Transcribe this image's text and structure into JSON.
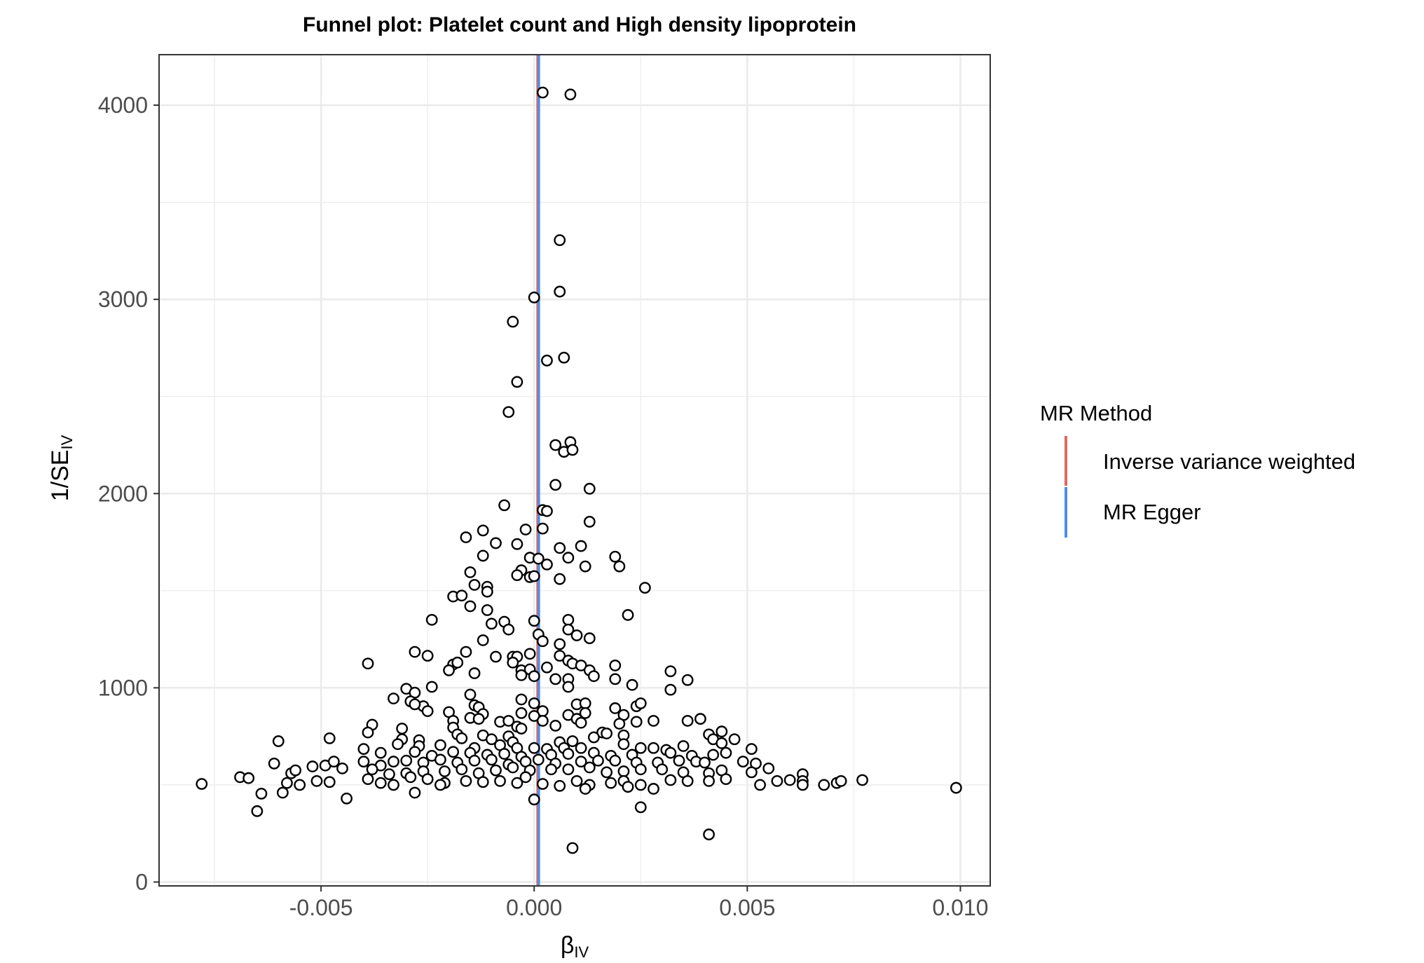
{
  "chart_data": {
    "type": "scatter",
    "title": "Funnel plot: Platelet count and High density lipoprotein",
    "xlabel": "βIV",
    "xlabel_main": "β",
    "xlabel_sub": "IV",
    "ylabel": "1/SEIV",
    "ylabel_main": "1/SE",
    "ylabel_sub": "IV",
    "xlim": [
      -0.0088,
      0.0107
    ],
    "ylim": [
      -20,
      4260
    ],
    "xticks": [
      -0.005,
      0.0,
      0.005,
      0.01
    ],
    "xtick_labels": [
      "-0.005",
      "0.000",
      "0.005",
      "0.010"
    ],
    "yticks": [
      0,
      1000,
      2000,
      3000,
      4000
    ],
    "ytick_labels": [
      "0",
      "1000",
      "2000",
      "3000",
      "4000"
    ],
    "grid": true,
    "legend": {
      "title": "MR Method",
      "position": "right",
      "entries": [
        {
          "label": "Inverse variance weighted",
          "color": "#E0685E"
        },
        {
          "label": "MR Egger",
          "color": "#4C8FEA"
        }
      ]
    },
    "lines": [
      {
        "name": "Inverse variance weighted",
        "x": 8e-05,
        "color": "#E0685E"
      },
      {
        "name": "MR Egger",
        "x": 0.00011,
        "color": "#4C8FEA"
      }
    ],
    "points": [
      [
        0.0002,
        4065
      ],
      [
        0.00085,
        4055
      ],
      [
        0.0006,
        3305
      ],
      [
        0.0006,
        3040
      ],
      [
        0.0,
        3010
      ],
      [
        -0.0005,
        2885
      ],
      [
        0.0007,
        2700
      ],
      [
        0.0003,
        2685
      ],
      [
        -0.0004,
        2575
      ],
      [
        -0.0006,
        2420
      ],
      [
        0.00085,
        2265
      ],
      [
        0.0005,
        2250
      ],
      [
        0.0007,
        2215
      ],
      [
        0.0009,
        2225
      ],
      [
        0.0005,
        2045
      ],
      [
        0.0013,
        2025
      ],
      [
        -0.0007,
        1940
      ],
      [
        0.0002,
        1915
      ],
      [
        0.0003,
        1910
      ],
      [
        0.0013,
        1855
      ],
      [
        -0.0002,
        1815
      ],
      [
        0.0002,
        1820
      ],
      [
        -0.0012,
        1810
      ],
      [
        -0.0016,
        1775
      ],
      [
        -0.0009,
        1745
      ],
      [
        -0.0004,
        1740
      ],
      [
        0.0006,
        1720
      ],
      [
        0.0011,
        1730
      ],
      [
        -0.0012,
        1680
      ],
      [
        -0.0001,
        1670
      ],
      [
        0.0001,
        1665
      ],
      [
        0.0008,
        1670
      ],
      [
        0.0019,
        1675
      ],
      [
        0.0003,
        1635
      ],
      [
        0.0012,
        1625
      ],
      [
        0.002,
        1625
      ],
      [
        -0.0003,
        1605
      ],
      [
        -0.0015,
        1595
      ],
      [
        -0.0004,
        1580
      ],
      [
        -0.0001,
        1570
      ],
      [
        0.0,
        1575
      ],
      [
        0.0006,
        1560
      ],
      [
        -0.0014,
        1530
      ],
      [
        -0.0011,
        1520
      ],
      [
        -0.0011,
        1495
      ],
      [
        0.0026,
        1515
      ],
      [
        -0.0019,
        1470
      ],
      [
        -0.0017,
        1475
      ],
      [
        -0.0015,
        1420
      ],
      [
        -0.0011,
        1400
      ],
      [
        0.0022,
        1375
      ],
      [
        -0.0024,
        1350
      ],
      [
        -0.0007,
        1340
      ],
      [
        0.0,
        1345
      ],
      [
        0.0008,
        1350
      ],
      [
        -0.001,
        1330
      ],
      [
        -0.0006,
        1300
      ],
      [
        0.0008,
        1300
      ],
      [
        0.0001,
        1275
      ],
      [
        0.001,
        1270
      ],
      [
        0.0013,
        1255
      ],
      [
        -0.0012,
        1245
      ],
      [
        0.0002,
        1240
      ],
      [
        0.0006,
        1225
      ],
      [
        -0.0028,
        1185
      ],
      [
        -0.0016,
        1185
      ],
      [
        -0.0025,
        1165
      ],
      [
        -0.0009,
        1160
      ],
      [
        -0.0005,
        1160
      ],
      [
        -0.0004,
        1160
      ],
      [
        -0.0001,
        1175
      ],
      [
        0.0006,
        1165
      ],
      [
        -0.0039,
        1125
      ],
      [
        -0.0019,
        1120
      ],
      [
        -0.0018,
        1130
      ],
      [
        -0.0005,
        1130
      ],
      [
        0.0003,
        1105
      ],
      [
        0.0008,
        1140
      ],
      [
        0.0009,
        1125
      ],
      [
        0.0011,
        1115
      ],
      [
        0.0019,
        1115
      ],
      [
        -0.002,
        1090
      ],
      [
        -0.0014,
        1075
      ],
      [
        -0.0003,
        1090
      ],
      [
        -0.0001,
        1095
      ],
      [
        0.0013,
        1090
      ],
      [
        0.0032,
        1085
      ],
      [
        -0.0003,
        1065
      ],
      [
        0.0,
        1060
      ],
      [
        0.0005,
        1045
      ],
      [
        0.0008,
        1045
      ],
      [
        0.0014,
        1060
      ],
      [
        0.0019,
        1045
      ],
      [
        0.0023,
        1015
      ],
      [
        0.0036,
        1040
      ],
      [
        0.0008,
        1005
      ],
      [
        0.0032,
        990
      ],
      [
        -0.003,
        995
      ],
      [
        -0.0024,
        1005
      ],
      [
        -0.0028,
        975
      ],
      [
        -0.0015,
        965
      ],
      [
        -0.0003,
        940
      ],
      [
        0.0,
        920
      ],
      [
        0.001,
        915
      ],
      [
        0.0012,
        920
      ],
      [
        0.0024,
        905
      ],
      [
        -0.0033,
        945
      ],
      [
        -0.0029,
        930
      ],
      [
        -0.0026,
        905
      ],
      [
        -0.0014,
        910
      ],
      [
        -0.0013,
        900
      ],
      [
        -0.0028,
        915
      ],
      [
        0.0002,
        880
      ],
      [
        0.0012,
        870
      ],
      [
        0.0019,
        895
      ],
      [
        0.0025,
        920
      ],
      [
        -0.0025,
        880
      ],
      [
        -0.002,
        875
      ],
      [
        -0.0012,
        865
      ],
      [
        -0.0003,
        870
      ],
      [
        0.0,
        855
      ],
      [
        0.0008,
        860
      ],
      [
        0.001,
        840
      ],
      [
        0.0021,
        860
      ],
      [
        0.0036,
        830
      ],
      [
        0.0039,
        840
      ],
      [
        -0.0015,
        845
      ],
      [
        -0.0013,
        840
      ],
      [
        -0.0019,
        830
      ],
      [
        -0.0008,
        825
      ],
      [
        -0.0006,
        830
      ],
      [
        0.0002,
        830
      ],
      [
        0.0005,
        805
      ],
      [
        0.0011,
        820
      ],
      [
        0.002,
        815
      ],
      [
        0.0024,
        825
      ],
      [
        0.0028,
        830
      ],
      [
        -0.0038,
        810
      ],
      [
        -0.0031,
        790
      ],
      [
        -0.0019,
        795
      ],
      [
        -0.0004,
        800
      ],
      [
        -0.0003,
        790
      ],
      [
        0.0016,
        770
      ],
      [
        0.0017,
        765
      ],
      [
        0.0041,
        760
      ],
      [
        -0.0039,
        770
      ],
      [
        -0.0018,
        760
      ],
      [
        -0.0012,
        755
      ],
      [
        -0.0006,
        750
      ],
      [
        0.0014,
        745
      ],
      [
        0.0021,
        755
      ],
      [
        0.0044,
        775
      ],
      [
        0.0047,
        735
      ],
      [
        -0.0031,
        735
      ],
      [
        -0.0027,
        730
      ],
      [
        -0.0017,
        740
      ],
      [
        -0.001,
        735
      ],
      [
        -0.0005,
        720
      ],
      [
        0.0006,
        720
      ],
      [
        0.0009,
        725
      ],
      [
        0.0042,
        735
      ],
      [
        -0.006,
        725
      ],
      [
        -0.0048,
        740
      ],
      [
        -0.004,
        685
      ],
      [
        -0.0032,
        710
      ],
      [
        -0.0027,
        700
      ],
      [
        -0.0022,
        705
      ],
      [
        -0.0014,
        690
      ],
      [
        -0.0008,
        705
      ],
      [
        -0.0004,
        690
      ],
      [
        0.0,
        690
      ],
      [
        0.0003,
        685
      ],
      [
        0.0007,
        690
      ],
      [
        0.0011,
        690
      ],
      [
        0.0021,
        710
      ],
      [
        0.0025,
        690
      ],
      [
        0.0028,
        690
      ],
      [
        0.0031,
        680
      ],
      [
        0.0035,
        700
      ],
      [
        0.0044,
        715
      ],
      [
        0.0051,
        685
      ],
      [
        -0.0036,
        665
      ],
      [
        -0.0028,
        670
      ],
      [
        -0.0024,
        650
      ],
      [
        -0.0019,
        670
      ],
      [
        -0.0015,
        665
      ],
      [
        -0.0011,
        655
      ],
      [
        -0.0007,
        660
      ],
      [
        -0.0003,
        645
      ],
      [
        0.0004,
        655
      ],
      [
        0.0008,
        660
      ],
      [
        0.0014,
        665
      ],
      [
        0.0018,
        650
      ],
      [
        0.0023,
        655
      ],
      [
        0.0032,
        665
      ],
      [
        0.0037,
        650
      ],
      [
        0.0042,
        655
      ],
      [
        0.0045,
        665
      ],
      [
        -0.0057,
        560
      ],
      [
        -0.0052,
        595
      ],
      [
        -0.0049,
        600
      ],
      [
        -0.0047,
        620
      ],
      [
        -0.004,
        620
      ],
      [
        -0.0036,
        600
      ],
      [
        -0.0033,
        620
      ],
      [
        -0.003,
        625
      ],
      [
        -0.0026,
        615
      ],
      [
        -0.0022,
        630
      ],
      [
        -0.0018,
        615
      ],
      [
        -0.0014,
        625
      ],
      [
        -0.001,
        630
      ],
      [
        -0.0006,
        605
      ],
      [
        -0.0002,
        620
      ],
      [
        0.0001,
        630
      ],
      [
        0.0005,
        610
      ],
      [
        0.0011,
        620
      ],
      [
        0.0015,
        625
      ],
      [
        0.0019,
        625
      ],
      [
        0.0024,
        615
      ],
      [
        0.0029,
        615
      ],
      [
        0.0034,
        625
      ],
      [
        0.0038,
        620
      ],
      [
        0.004,
        615
      ],
      [
        0.0049,
        620
      ],
      [
        0.0052,
        610
      ],
      [
        -0.0061,
        610
      ],
      [
        -0.0056,
        575
      ],
      [
        -0.0045,
        585
      ],
      [
        -0.0038,
        580
      ],
      [
        -0.0034,
        555
      ],
      [
        -0.003,
        560
      ],
      [
        -0.0026,
        570
      ],
      [
        -0.0021,
        570
      ],
      [
        -0.0017,
        580
      ],
      [
        -0.0013,
        560
      ],
      [
        -0.0009,
        575
      ],
      [
        -0.0005,
        590
      ],
      [
        -0.0001,
        575
      ],
      [
        0.0004,
        580
      ],
      [
        0.0008,
        580
      ],
      [
        0.0013,
        590
      ],
      [
        0.0017,
        565
      ],
      [
        0.0021,
        570
      ],
      [
        0.0025,
        580
      ],
      [
        0.003,
        580
      ],
      [
        0.0035,
        565
      ],
      [
        0.0041,
        560
      ],
      [
        0.0044,
        575
      ],
      [
        0.0051,
        565
      ],
      [
        0.0055,
        585
      ],
      [
        0.0063,
        555
      ],
      [
        -0.0078,
        505
      ],
      [
        -0.0069,
        540
      ],
      [
        -0.0067,
        535
      ],
      [
        -0.0064,
        455
      ],
      [
        -0.0058,
        510
      ],
      [
        -0.0055,
        500
      ],
      [
        -0.0051,
        520
      ],
      [
        -0.0048,
        515
      ],
      [
        -0.0044,
        430
      ],
      [
        -0.0039,
        530
      ],
      [
        -0.0036,
        510
      ],
      [
        -0.0033,
        500
      ],
      [
        -0.0029,
        540
      ],
      [
        -0.0028,
        460
      ],
      [
        -0.0025,
        530
      ],
      [
        -0.0021,
        510
      ],
      [
        -0.0016,
        520
      ],
      [
        -0.0012,
        515
      ],
      [
        -0.0008,
        520
      ],
      [
        -0.0004,
        510
      ],
      [
        -0.0002,
        540
      ],
      [
        0.0002,
        505
      ],
      [
        0.0006,
        495
      ],
      [
        0.001,
        520
      ],
      [
        0.0013,
        500
      ],
      [
        0.0018,
        510
      ],
      [
        0.0021,
        520
      ],
      [
        0.0025,
        500
      ],
      [
        0.0028,
        480
      ],
      [
        0.0032,
        525
      ],
      [
        0.0036,
        520
      ],
      [
        0.0041,
        520
      ],
      [
        0.0045,
        530
      ],
      [
        0.0053,
        500
      ],
      [
        0.0057,
        520
      ],
      [
        0.006,
        525
      ],
      [
        0.0063,
        520
      ],
      [
        0.0068,
        500
      ],
      [
        0.0071,
        510
      ],
      [
        0.0077,
        525
      ],
      [
        0.0072,
        520
      ],
      [
        0.0099,
        485
      ],
      [
        0.0,
        425
      ],
      [
        0.0025,
        385
      ],
      [
        -0.0065,
        365
      ],
      [
        0.0041,
        245
      ],
      [
        0.0009,
        175
      ],
      [
        -0.0059,
        460
      ],
      [
        -0.0022,
        500
      ],
      [
        0.0012,
        480
      ],
      [
        0.0022,
        490
      ],
      [
        0.0063,
        500
      ]
    ]
  }
}
